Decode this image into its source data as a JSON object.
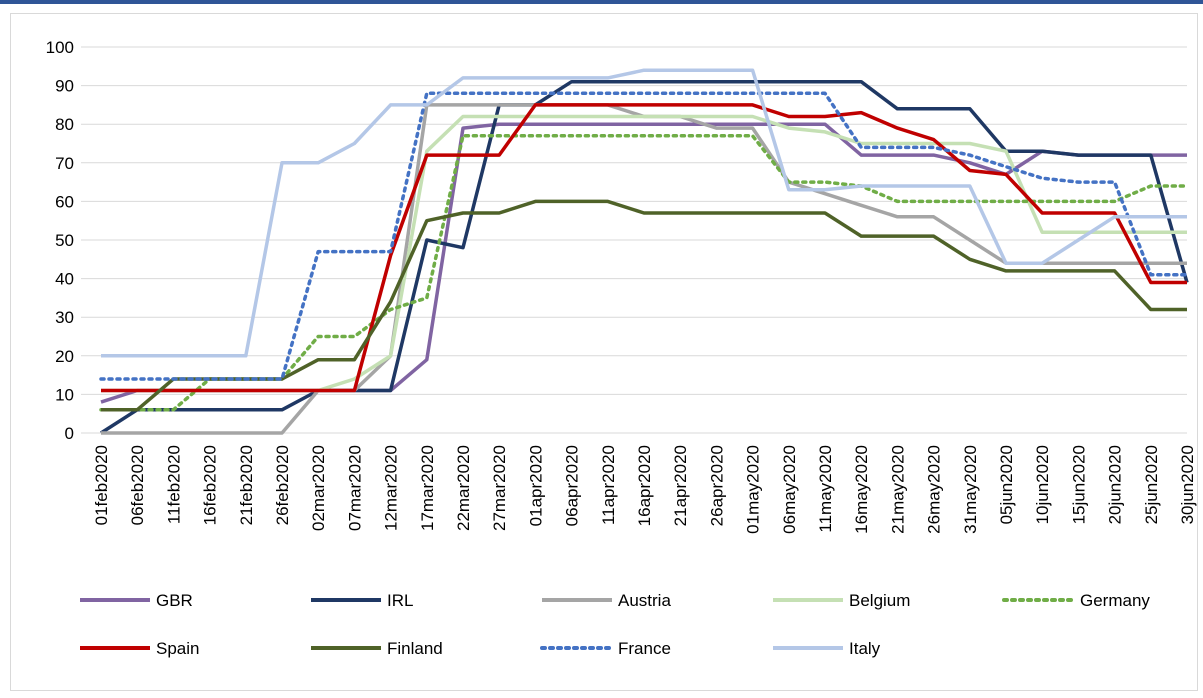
{
  "chart_data": {
    "type": "line",
    "categories": [
      "01feb2020",
      "06feb2020",
      "11feb2020",
      "16feb2020",
      "21feb2020",
      "26feb2020",
      "02mar2020",
      "07mar2020",
      "12mar2020",
      "17mar2020",
      "22mar2020",
      "27mar2020",
      "01apr2020",
      "06apr2020",
      "11apr2020",
      "16apr2020",
      "21apr2020",
      "26apr2020",
      "01may2020",
      "06may2020",
      "11may2020",
      "16may2020",
      "21may2020",
      "26may2020",
      "31may2020",
      "05jun2020",
      "10jun2020",
      "15jun2020",
      "20jun2020",
      "25jun2020",
      "30jun2020"
    ],
    "series": [
      {
        "name": "GBR",
        "color": "#8064a2",
        "dotted": false,
        "values": [
          8,
          11,
          11,
          11,
          11,
          11,
          11,
          11,
          11,
          19,
          79,
          80,
          80,
          80,
          80,
          80,
          80,
          80,
          80,
          80,
          80,
          72,
          72,
          72,
          70,
          67,
          73,
          72,
          72,
          72,
          72
        ]
      },
      {
        "name": "IRL",
        "color": "#1f3864",
        "dotted": false,
        "values": [
          0,
          6,
          6,
          6,
          6,
          6,
          11,
          11,
          11,
          50,
          48,
          85,
          85,
          91,
          91,
          91,
          91,
          91,
          91,
          91,
          91,
          91,
          84,
          84,
          84,
          73,
          73,
          72,
          72,
          72,
          39
        ]
      },
      {
        "name": "Austria",
        "color": "#a5a5a5",
        "dotted": false,
        "values": [
          0,
          0,
          0,
          0,
          0,
          0,
          11,
          11,
          20,
          85,
          85,
          85,
          85,
          85,
          85,
          82,
          82,
          79,
          79,
          65,
          62,
          59,
          56,
          56,
          50,
          44,
          44,
          44,
          44,
          44,
          44
        ]
      },
      {
        "name": "Belgium",
        "color": "#c5e0b4",
        "dotted": false,
        "values": [
          11,
          11,
          11,
          11,
          11,
          11,
          11,
          14,
          20,
          73,
          82,
          82,
          82,
          82,
          82,
          82,
          82,
          82,
          82,
          79,
          78,
          75,
          75,
          75,
          75,
          73,
          52,
          52,
          52,
          52,
          52
        ]
      },
      {
        "name": "Germany",
        "color": "#70ad47",
        "dotted": true,
        "values": [
          6,
          6,
          6,
          14,
          14,
          14,
          25,
          25,
          32,
          35,
          77,
          77,
          77,
          77,
          77,
          77,
          77,
          77,
          77,
          65,
          65,
          64,
          60,
          60,
          60,
          60,
          60,
          60,
          60,
          64,
          64
        ]
      },
      {
        "name": "Spain",
        "color": "#c00000",
        "dotted": false,
        "values": [
          11,
          11,
          11,
          11,
          11,
          11,
          11,
          11,
          46,
          72,
          72,
          72,
          85,
          85,
          85,
          85,
          85,
          85,
          85,
          82,
          82,
          83,
          79,
          76,
          68,
          67,
          57,
          57,
          57,
          39,
          39
        ]
      },
      {
        "name": "Finland",
        "color": "#4f6228",
        "dotted": false,
        "values": [
          6,
          6,
          14,
          14,
          14,
          14,
          19,
          19,
          34,
          55,
          57,
          57,
          60,
          60,
          60,
          57,
          57,
          57,
          57,
          57,
          57,
          51,
          51,
          51,
          45,
          42,
          42,
          42,
          42,
          32,
          32
        ]
      },
      {
        "name": "France",
        "color": "#4472c4",
        "dotted": true,
        "values": [
          14,
          14,
          14,
          14,
          14,
          14,
          47,
          47,
          47,
          88,
          88,
          88,
          88,
          88,
          88,
          88,
          88,
          88,
          88,
          88,
          88,
          74,
          74,
          74,
          72,
          69,
          66,
          65,
          65,
          41,
          41
        ]
      },
      {
        "name": "Italy",
        "color": "#b4c7e7",
        "dotted": false,
        "values": [
          20,
          20,
          20,
          20,
          20,
          70,
          70,
          75,
          85,
          85,
          92,
          92,
          92,
          92,
          92,
          94,
          94,
          94,
          94,
          63,
          63,
          64,
          64,
          64,
          64,
          44,
          44,
          50,
          56,
          56,
          56
        ]
      }
    ],
    "ylim": [
      0,
      100
    ],
    "yticks": [
      0,
      10,
      20,
      30,
      40,
      50,
      60,
      70,
      80,
      90,
      100
    ],
    "grid": true
  }
}
